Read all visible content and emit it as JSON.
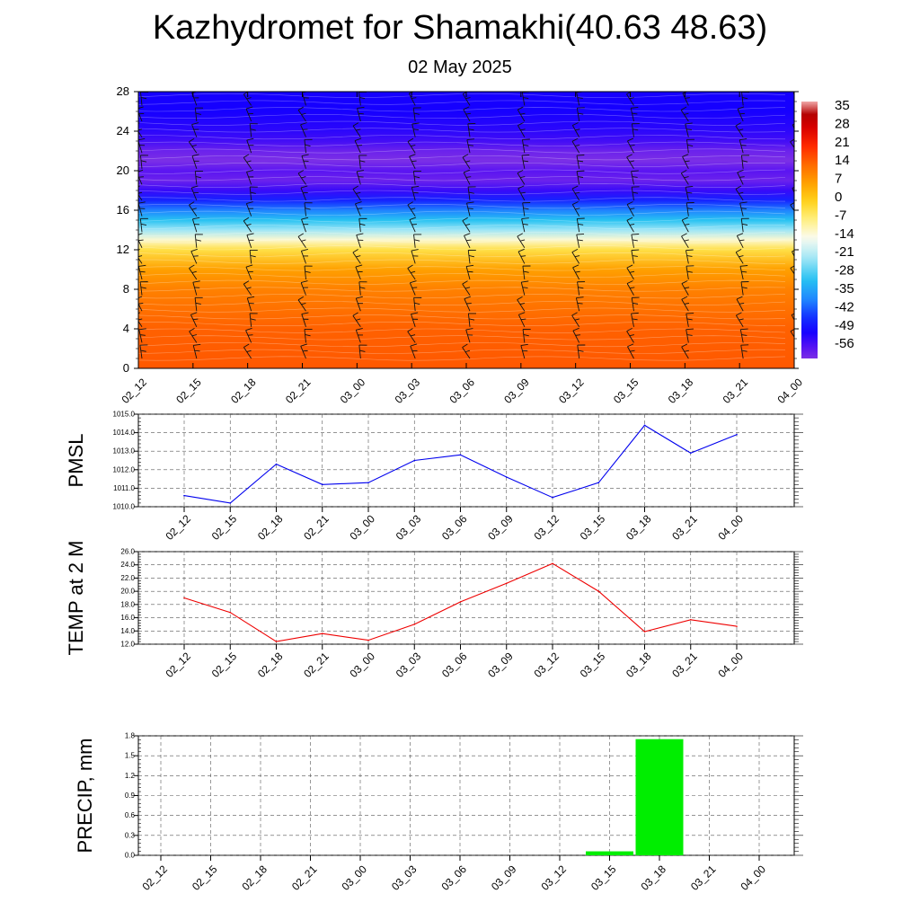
{
  "title": "Kazhydromet for Shamakhi(40.63 48.63)",
  "subtitle": "02 May 2025",
  "time_labels": [
    "02_12",
    "02_15",
    "02_18",
    "02_21",
    "03_00",
    "03_03",
    "03_06",
    "03_09",
    "03_12",
    "03_15",
    "03_18",
    "03_21",
    "04_00"
  ],
  "colors": {
    "pmsl_line": "#0000ee",
    "temp_line": "#ee0000",
    "precip_bar": "#00ee00",
    "grid": "#555555"
  },
  "chart_data": [
    {
      "type": "heatmap",
      "title": "",
      "ylim": [
        0,
        28
      ],
      "y_ticks": [
        0,
        4,
        8,
        12,
        16,
        20,
        24,
        28
      ],
      "x": [
        "02_12",
        "02_15",
        "02_18",
        "02_21",
        "03_00",
        "03_03",
        "03_06",
        "03_09",
        "03_12",
        "03_15",
        "03_18",
        "03_21",
        "04_00"
      ],
      "colorbar": {
        "tick_labels": [
          "35",
          "28",
          "21",
          "14",
          "7",
          "0",
          "-7",
          "-14",
          "-21",
          "-28",
          "-35",
          "-42",
          "-49",
          "-56"
        ],
        "range": [
          -60,
          38
        ]
      },
      "temperature_profile": [
        [
          0,
          16
        ],
        [
          4,
          15
        ],
        [
          8,
          11
        ],
        [
          10,
          7
        ],
        [
          12,
          -3
        ],
        [
          13,
          -12
        ],
        [
          14,
          -22
        ],
        [
          15,
          -30
        ],
        [
          16,
          -38
        ],
        [
          17,
          -46
        ],
        [
          18,
          -53
        ],
        [
          19,
          -58
        ],
        [
          20,
          -56
        ],
        [
          21,
          -60
        ],
        [
          22,
          -58
        ],
        [
          23,
          -54
        ],
        [
          24,
          -52
        ],
        [
          26,
          -50
        ],
        [
          28,
          -50
        ]
      ],
      "overlay": "wind-barbs"
    },
    {
      "type": "line",
      "ylabel": "PMSL",
      "ylim": [
        1010.0,
        1015.0
      ],
      "y_ticks": [
        "1010.0",
        "1011.0",
        "1012.0",
        "1013.0",
        "1014.0",
        "1015.0"
      ],
      "x": [
        "02_12",
        "02_15",
        "02_18",
        "02_21",
        "03_00",
        "03_03",
        "03_06",
        "03_09",
        "03_12",
        "03_15",
        "03_18",
        "03_21",
        "04_00"
      ],
      "values": [
        1010.6,
        1010.2,
        1012.3,
        1011.2,
        1011.3,
        1012.5,
        1012.8,
        1011.6,
        1010.5,
        1011.3,
        1014.4,
        1012.9,
        1013.9
      ]
    },
    {
      "type": "line",
      "ylabel": "TEMP at 2 M",
      "ylim": [
        12.0,
        26.0
      ],
      "y_ticks": [
        "12.0",
        "14.0",
        "16.0",
        "18.0",
        "20.0",
        "22.0",
        "24.0",
        "26.0"
      ],
      "x": [
        "02_12",
        "02_15",
        "02_18",
        "02_21",
        "03_00",
        "03_03",
        "03_06",
        "03_09",
        "03_12",
        "03_15",
        "03_18",
        "03_21",
        "04_00"
      ],
      "values": [
        19.0,
        16.8,
        12.4,
        13.6,
        12.6,
        15.0,
        18.4,
        21.2,
        24.2,
        20.0,
        13.9,
        15.7,
        14.7
      ]
    },
    {
      "type": "bar",
      "ylabel": "PRECIP, mm",
      "ylim": [
        0.0,
        1.8
      ],
      "y_ticks": [
        "0.0",
        "0.3",
        "0.6",
        "0.9",
        "1.2",
        "1.5",
        "1.8"
      ],
      "x": [
        "02_12",
        "02_15",
        "02_18",
        "02_21",
        "03_00",
        "03_03",
        "03_06",
        "03_09",
        "03_12",
        "03_15",
        "03_18",
        "03_21",
        "04_00"
      ],
      "values": [
        0,
        0,
        0,
        0,
        0,
        0,
        0,
        0,
        0,
        0.06,
        1.75,
        0,
        0
      ]
    }
  ]
}
